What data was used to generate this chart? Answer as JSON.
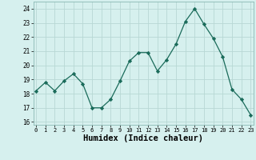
{
  "x": [
    0,
    1,
    2,
    3,
    4,
    5,
    6,
    7,
    8,
    9,
    10,
    11,
    12,
    13,
    14,
    15,
    16,
    17,
    18,
    19,
    20,
    21,
    22,
    23
  ],
  "y": [
    18.2,
    18.8,
    18.2,
    18.9,
    19.4,
    18.7,
    17.0,
    17.0,
    17.6,
    18.9,
    20.3,
    20.9,
    20.9,
    19.6,
    20.4,
    21.5,
    23.1,
    24.0,
    22.9,
    21.9,
    20.6,
    18.3,
    17.6,
    16.5
  ],
  "line_color": "#1a6b5a",
  "marker": "D",
  "marker_size": 2.2,
  "bg_color": "#d6f0ee",
  "grid_color": "#b8d8d4",
  "xlabel": "Humidex (Indice chaleur)",
  "xlabel_fontsize": 7.5,
  "tick_labels": [
    "0",
    "1",
    "2",
    "3",
    "4",
    "5",
    "6",
    "7",
    "8",
    "9",
    "10",
    "11",
    "12",
    "13",
    "14",
    "15",
    "16",
    "17",
    "18",
    "19",
    "20",
    "21",
    "22",
    "23"
  ],
  "ylim": [
    15.8,
    24.5
  ],
  "yticks": [
    16,
    17,
    18,
    19,
    20,
    21,
    22,
    23,
    24
  ],
  "xlim": [
    -0.3,
    23.3
  ]
}
